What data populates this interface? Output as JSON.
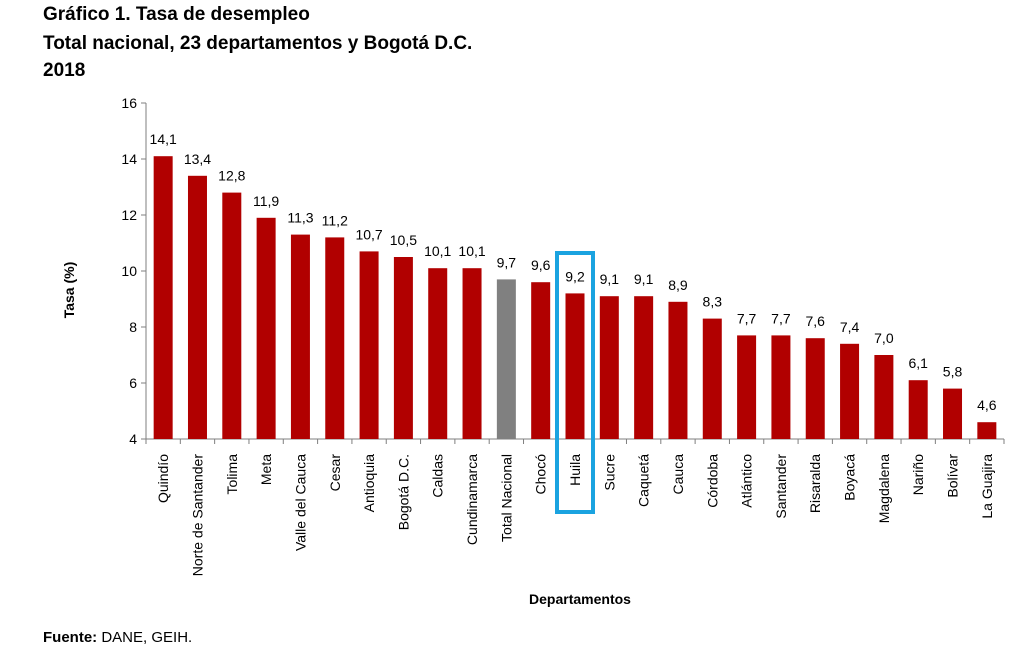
{
  "title": {
    "line1": "Gráfico 1. Tasa de desempleo",
    "line2": "Total nacional, 23 departamentos y Bogotá D.C.",
    "line3": "2018"
  },
  "source": {
    "label": "Fuente:",
    "text": " DANE, GEIH."
  },
  "colors": {
    "bar": "#b10000",
    "highlight_bar": "#808080",
    "highlight_box": "#1aa3e0"
  },
  "chart_data": {
    "type": "bar",
    "xlabel": "Departamentos",
    "ylabel": "Tasa (%)",
    "ylim": [
      4,
      16
    ],
    "yticks": [
      4,
      6,
      8,
      10,
      12,
      14,
      16
    ],
    "grid": false,
    "categories": [
      "Quindío",
      "Norte de Santander",
      "Tolima",
      "Meta",
      "Valle del Cauca",
      "Cesar",
      "Antioquia",
      "Bogotá D.C.",
      "Caldas",
      "Cundinamarca",
      "Total Nacional",
      "Chocó",
      "Huila",
      "Sucre",
      "Caquetá",
      "Cauca",
      "Córdoba",
      "Atlántico",
      "Santander",
      "Risaralda",
      "Boyacá",
      "Magdalena",
      "Nariño",
      "Bolívar",
      "La Guajira"
    ],
    "values": [
      14.1,
      13.4,
      12.8,
      11.9,
      11.3,
      11.2,
      10.7,
      10.5,
      10.1,
      10.1,
      9.7,
      9.6,
      9.2,
      9.1,
      9.1,
      8.9,
      8.3,
      7.7,
      7.7,
      7.6,
      7.4,
      7.0,
      6.1,
      5.8,
      4.6
    ],
    "value_labels": [
      "14,1",
      "13,4",
      "12,8",
      "11,9",
      "11,3",
      "11,2",
      "10,7",
      "10,5",
      "10,1",
      "10,1",
      "9,7",
      "9,6",
      "9,2",
      "9,1",
      "9,1",
      "8,9",
      "8,3",
      "7,7",
      "7,7",
      "7,6",
      "7,4",
      "7,0",
      "6,1",
      "5,8",
      "4,6"
    ],
    "gray_category": "Total Nacional",
    "boxed_category": "Huila"
  }
}
